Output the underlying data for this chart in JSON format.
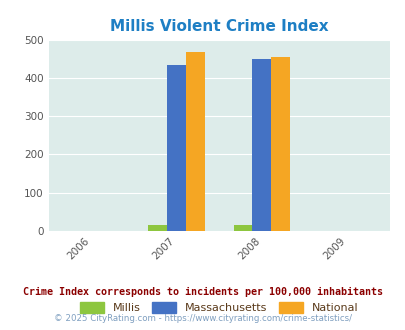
{
  "title": "Millis Violent Crime Index",
  "title_color": "#1e7fc4",
  "years": [
    2006,
    2007,
    2008,
    2009
  ],
  "bar_groups": {
    "2007": {
      "millis": 16,
      "massachusetts": 433,
      "national": 467
    },
    "2008": {
      "millis": 16,
      "massachusetts": 450,
      "national": 454
    }
  },
  "millis_color": "#8dc63f",
  "massachusetts_color": "#4472c4",
  "national_color": "#f5a623",
  "bg_color": "#ddecea",
  "ylim": [
    0,
    500
  ],
  "yticks": [
    0,
    100,
    200,
    300,
    400,
    500
  ],
  "legend_labels": [
    "Millis",
    "Massachusetts",
    "National"
  ],
  "note_text": "Crime Index corresponds to incidents per 100,000 inhabitants",
  "note_color": "#8b0000",
  "copyright_text": "© 2025 CityRating.com - https://www.cityrating.com/crime-statistics/",
  "copyright_color": "#7f9fc0",
  "bar_width": 0.22
}
